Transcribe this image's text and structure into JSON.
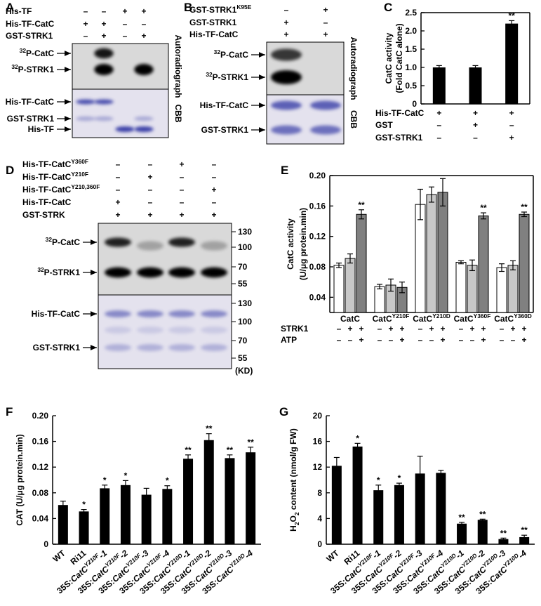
{
  "panel_labels": [
    "A",
    "B",
    "C",
    "D",
    "E",
    "F",
    "G"
  ],
  "blots": [
    {
      "rows": [
        {
          "label": "His-TF",
          "signs": [
            "–",
            "–",
            "+",
            "+"
          ]
        },
        {
          "label": "His-TF-CatC",
          "signs": [
            "+",
            "+",
            "–",
            "–"
          ]
        },
        {
          "label": "GST-STRK1",
          "signs": [
            "–",
            "+",
            "–",
            "+"
          ]
        }
      ],
      "autoradiograph_label": "Autoradiograph",
      "cbb_label": "CBB",
      "auto_bands": [
        [
          {
            "text": "32",
            "sup": true
          },
          {
            "text": "P-CatC"
          }
        ],
        [
          {
            "text": "32",
            "sup": true
          },
          {
            "text": "P-STRK1"
          }
        ]
      ],
      "cbb_bands": [
        "His-TF-CatC",
        "GST-STRK1",
        "His-TF"
      ]
    },
    {
      "rows": [
        {
          "label": [
            {
              "text": "GST-STRK1"
            },
            {
              "text": "K95E",
              "sup": true
            }
          ],
          "signs": [
            "–",
            "+"
          ]
        },
        {
          "label": "GST-STRK1",
          "signs": [
            "+",
            "–"
          ]
        },
        {
          "label": "His-TF-CatC",
          "signs": [
            "+",
            "+"
          ]
        }
      ],
      "autoradiograph_label": "Autoradiograph",
      "cbb_label": "CBB",
      "auto_bands": [
        [
          {
            "text": "32",
            "sup": true
          },
          {
            "text": "P-CatC"
          }
        ],
        [
          {
            "text": "32",
            "sup": true
          },
          {
            "text": "P-STRK1"
          }
        ]
      ],
      "cbb_bands": [
        "His-TF-CatC",
        "GST-STRK1"
      ]
    },
    {
      "rows": [
        {
          "label": [
            {
              "text": "His-TF-CatC"
            },
            {
              "text": "Y360F",
              "sup": true
            }
          ],
          "signs": [
            "–",
            "–",
            "+",
            "–"
          ]
        },
        {
          "label": [
            {
              "text": "His-TF-CatC"
            },
            {
              "text": "Y210F",
              "sup": true
            }
          ],
          "signs": [
            "–",
            "+",
            "–",
            "–"
          ]
        },
        {
          "label": [
            {
              "text": "His-TF-CatC"
            },
            {
              "text": "Y210,360F",
              "sup": true
            }
          ],
          "signs": [
            "–",
            "–",
            "–",
            "+"
          ]
        },
        {
          "label": "His-TF-CatC",
          "signs": [
            "+",
            "–",
            "–",
            "–"
          ]
        },
        {
          "label": "GST-STRK",
          "signs": [
            "+",
            "+",
            "+",
            "+"
          ]
        }
      ],
      "auto_bands": [
        [
          {
            "text": "32",
            "sup": true
          },
          {
            "text": "P-CatC"
          }
        ],
        [
          {
            "text": "32",
            "sup": true
          },
          {
            "text": "P-STRK1"
          }
        ]
      ],
      "cbb_bands": [
        "His-TF-CatC",
        "GST-STRK1"
      ],
      "auto_markers": [
        "130",
        "100",
        "70",
        "55"
      ],
      "cbb_markers": [
        "130",
        "100",
        "70",
        "55"
      ],
      "marker_unit": "(KD)"
    }
  ],
  "chart_data": [
    {
      "type": "bar",
      "ylabel": [
        "CatC activity",
        "(Fold CatC alone)"
      ],
      "ylim": [
        0,
        2.5
      ],
      "yticks": [
        0,
        0.5,
        {
          "value": 1,
          "label": "1.0"
        },
        1.5,
        {
          "value": 2,
          "label": "2.0"
        },
        2.5
      ],
      "color": "#000000",
      "values": [
        1.0,
        1.0,
        2.2
      ],
      "errors": [
        0.05,
        0.05,
        0.08
      ],
      "significance": [
        null,
        null,
        "**"
      ],
      "conditions": [
        {
          "label": "His-TF-CatC",
          "signs": [
            "+",
            "+",
            "+"
          ]
        },
        {
          "label": "GST",
          "signs": [
            "–",
            "+",
            "–"
          ]
        },
        {
          "label": "GST-STRK1",
          "signs": [
            "–",
            "–",
            "+"
          ]
        }
      ]
    },
    {
      "type": "grouped-bar",
      "ylabel": [
        "CatC activity",
        "(U/μg protein.min)"
      ],
      "ylim": [
        0.02,
        0.2
      ],
      "yticks": [
        0.04,
        0.08,
        0.12,
        0.16,
        {
          "value": 0.2,
          "label": "0.20"
        }
      ],
      "categories": [
        [
          {
            "text": "CatC"
          }
        ],
        [
          {
            "text": "CatC"
          },
          {
            "text": "Y210F",
            "sup": true
          }
        ],
        [
          {
            "text": "CatC"
          },
          {
            "text": "Y210D",
            "sup": true
          }
        ],
        [
          {
            "text": "CatC"
          },
          {
            "text": "Y360F",
            "sup": true
          }
        ],
        [
          {
            "text": "CatC"
          },
          {
            "text": "Y360D",
            "sup": true
          }
        ]
      ],
      "series": [
        {
          "color": "#ffffff",
          "values": [
            0.082,
            0.054,
            0.162,
            0.086,
            0.079
          ],
          "errors": [
            0.003,
            0.003,
            0.02,
            0.002,
            0.005
          ],
          "significance": [
            null,
            null,
            null,
            null,
            null
          ]
        },
        {
          "color": "#c8c8c8",
          "values": [
            0.091,
            0.056,
            0.175,
            0.082,
            0.082
          ],
          "errors": [
            0.006,
            0.008,
            0.01,
            0.007,
            0.006
          ],
          "significance": [
            null,
            null,
            null,
            null,
            null
          ]
        },
        {
          "color": "#808080",
          "values": [
            0.149,
            0.053,
            0.178,
            0.147,
            0.149
          ],
          "errors": [
            0.006,
            0.007,
            0.018,
            0.004,
            0.003
          ],
          "significance": [
            "**",
            null,
            null,
            "**",
            "**"
          ]
        }
      ],
      "conditions": [
        {
          "label": "STRK1",
          "signs": [
            "–",
            "+",
            "+"
          ]
        },
        {
          "label": "ATP",
          "signs": [
            "–",
            "–",
            "+"
          ]
        }
      ]
    },
    {
      "type": "bar",
      "ylabel": [
        "CAT (U/μg protein.min)"
      ],
      "ylim": [
        0,
        0.2
      ],
      "yticks": [
        0,
        0.04,
        0.08,
        0.12,
        0.16,
        {
          "value": 0.2,
          "label": "0.20"
        }
      ],
      "color": "#000000",
      "categories": [
        [
          {
            "text": "WT"
          }
        ],
        [
          {
            "text": "Ri11"
          }
        ],
        [
          {
            "text": "35S:"
          },
          {
            "text": "CatC",
            "italic": true
          },
          {
            "text": "Y210F",
            "sup": true,
            "italic": true
          },
          {
            "text": "-1",
            "italic": true
          }
        ],
        [
          {
            "text": "35S:"
          },
          {
            "text": "CatC",
            "italic": true
          },
          {
            "text": "Y210F",
            "sup": true,
            "italic": true
          },
          {
            "text": "-2",
            "italic": true
          }
        ],
        [
          {
            "text": "35S:"
          },
          {
            "text": "CatC",
            "italic": true
          },
          {
            "text": "Y210F",
            "sup": true,
            "italic": true
          },
          {
            "text": "-3",
            "italic": true
          }
        ],
        [
          {
            "text": "35S:"
          },
          {
            "text": "CatC",
            "italic": true
          },
          {
            "text": "Y210F",
            "sup": true,
            "italic": true
          },
          {
            "text": "-4",
            "italic": true
          }
        ],
        [
          {
            "text": "35S:"
          },
          {
            "text": "CatC",
            "italic": true
          },
          {
            "text": "Y210D",
            "sup": true,
            "italic": true
          },
          {
            "text": "-1",
            "italic": true
          }
        ],
        [
          {
            "text": "35S:"
          },
          {
            "text": "CatC",
            "italic": true
          },
          {
            "text": "Y210D",
            "sup": true,
            "italic": true
          },
          {
            "text": "-2",
            "italic": true
          }
        ],
        [
          {
            "text": "35S:"
          },
          {
            "text": "CatC",
            "italic": true
          },
          {
            "text": "Y210D",
            "sup": true,
            "italic": true
          },
          {
            "text": "-3",
            "italic": true
          }
        ],
        [
          {
            "text": "35S:"
          },
          {
            "text": "CatC",
            "italic": true
          },
          {
            "text": "Y210D",
            "sup": true,
            "italic": true
          },
          {
            "text": "-4",
            "italic": true
          }
        ]
      ],
      "values": [
        0.061,
        0.051,
        0.087,
        0.092,
        0.077,
        0.086,
        0.133,
        0.162,
        0.134,
        0.143
      ],
      "errors": [
        0.006,
        0.003,
        0.005,
        0.007,
        0.01,
        0.005,
        0.006,
        0.01,
        0.005,
        0.008
      ],
      "significance": [
        null,
        "*",
        "*",
        "*",
        null,
        "*",
        "**",
        "**",
        "**",
        "**"
      ]
    },
    {
      "type": "bar",
      "ylabel": [
        [
          {
            "text": "H"
          },
          {
            "text": "2",
            "sub": true
          },
          {
            "text": "O"
          },
          {
            "text": "2",
            "sub": true
          },
          {
            "text": " content (nmol/g FW)"
          }
        ]
      ],
      "ylim": [
        0,
        20
      ],
      "yticks": [
        0,
        4,
        8,
        12,
        16,
        20
      ],
      "color": "#000000",
      "categories": [
        [
          {
            "text": "WT"
          }
        ],
        [
          {
            "text": "Ri11"
          }
        ],
        [
          {
            "text": "35S:"
          },
          {
            "text": "CatC",
            "italic": true
          },
          {
            "text": "Y210F",
            "sup": true,
            "italic": true
          },
          {
            "text": "-1",
            "italic": true
          }
        ],
        [
          {
            "text": "35S:"
          },
          {
            "text": "CatC",
            "italic": true
          },
          {
            "text": "Y210F",
            "sup": true,
            "italic": true
          },
          {
            "text": "-2",
            "italic": true
          }
        ],
        [
          {
            "text": "35S:"
          },
          {
            "text": "CatC",
            "italic": true
          },
          {
            "text": "Y210F",
            "sup": true,
            "italic": true
          },
          {
            "text": "-3",
            "italic": true
          }
        ],
        [
          {
            "text": "35S:"
          },
          {
            "text": "CatC",
            "italic": true
          },
          {
            "text": "Y210F",
            "sup": true,
            "italic": true
          },
          {
            "text": "-4",
            "italic": true
          }
        ],
        [
          {
            "text": "35S:"
          },
          {
            "text": "CatC",
            "italic": true
          },
          {
            "text": "Y210D",
            "sup": true,
            "italic": true
          },
          {
            "text": "-1",
            "italic": true
          }
        ],
        [
          {
            "text": "35S:"
          },
          {
            "text": "CatC",
            "italic": true
          },
          {
            "text": "Y210D",
            "sup": true,
            "italic": true
          },
          {
            "text": "-2",
            "italic": true
          }
        ],
        [
          {
            "text": "35S:"
          },
          {
            "text": "CatC",
            "italic": true
          },
          {
            "text": "Y210D",
            "sup": true,
            "italic": true
          },
          {
            "text": "-3",
            "italic": true
          }
        ],
        [
          {
            "text": "35S:"
          },
          {
            "text": "CatC",
            "italic": true
          },
          {
            "text": "Y210D",
            "sup": true,
            "italic": true
          },
          {
            "text": "-4",
            "italic": true
          }
        ]
      ],
      "values": [
        12.2,
        15.2,
        8.4,
        9.2,
        11.0,
        11.1,
        3.2,
        3.8,
        0.8,
        1.1
      ],
      "errors": [
        1.3,
        0.5,
        0.8,
        0.3,
        2.7,
        0.4,
        0.2,
        0.1,
        0.15,
        0.3
      ],
      "significance": [
        null,
        "*",
        "*",
        "*",
        null,
        null,
        "**",
        "**",
        "**",
        "**"
      ]
    }
  ]
}
